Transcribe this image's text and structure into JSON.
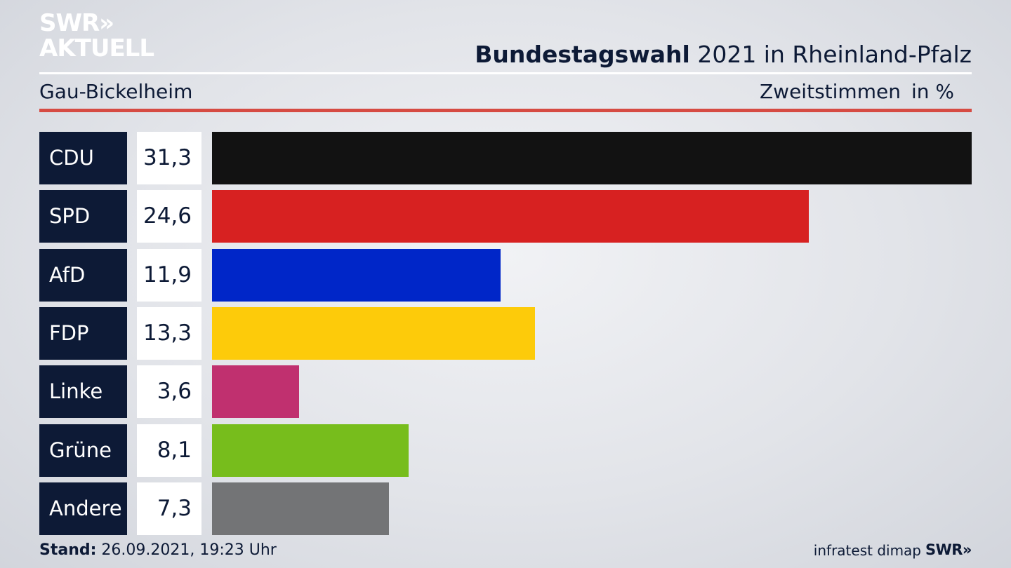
{
  "branding": {
    "logo_line1": "SWR»",
    "logo_line2": "AKTUELL"
  },
  "header": {
    "title_bold": "Bundestagswahl",
    "title_rest": " 2021 in Rheinland-Pfalz",
    "region": "Gau-Bickelheim",
    "vote_type": "Zweitstimmen",
    "unit": "in %"
  },
  "chart_data": {
    "type": "bar",
    "orientation": "horizontal",
    "categories": [
      "CDU",
      "SPD",
      "AfD",
      "FDP",
      "Linke",
      "Grüne",
      "Andere"
    ],
    "values": [
      31.3,
      24.6,
      11.9,
      13.3,
      3.6,
      8.1,
      7.3
    ],
    "value_labels": [
      "31,3",
      "24,6",
      "11,9",
      "13,3",
      "3,6",
      "8,1",
      "7,3"
    ],
    "colors": [
      "#121212",
      "#d72121",
      "#0026c8",
      "#fdcb0a",
      "#c0306f",
      "#77bd1c",
      "#737476"
    ],
    "title": "Bundestagswahl 2021 in Rheinland-Pfalz",
    "xlim": [
      0,
      31.3
    ],
    "grid": false,
    "legend": "none"
  },
  "footer": {
    "stand_label": "Stand:",
    "stand_value": " 26.09.2021, 19:23 Uhr",
    "source": "infratest dimap",
    "source_logo": "SWR»"
  }
}
